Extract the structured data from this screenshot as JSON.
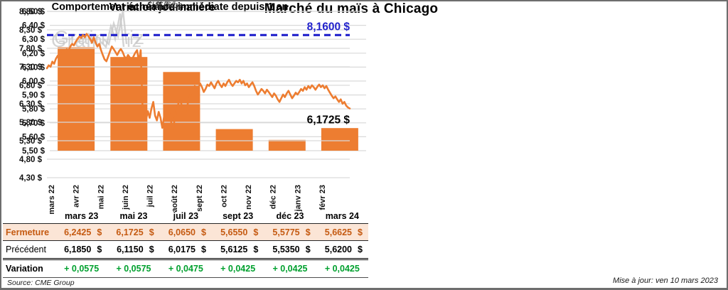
{
  "page": {
    "title": "Marché du maïs à Chicago",
    "source": "Source: CME Group",
    "updated": "Mise à jour: ven 10 mars 2023",
    "watermark": {
      "part1": "Grain",
      "part2": "iz",
      "middle_icon": "zigzag-w-icon"
    }
  },
  "colors": {
    "accent_orange": "#ED7D31",
    "gridline": "#D9D9D9",
    "dashed_blue": "#2222CC",
    "fermeture_bg": "#FBE5D6",
    "fermeture_text": "#C55A11",
    "variation_green": "#00A02E",
    "watermark_grey": "#c6c6c6"
  },
  "chart_data": [
    {
      "type": "bar",
      "title": "Variation journalière",
      "subtitle": "- $US/bo. -",
      "categories": [
        "mars 23",
        "mai 23",
        "juil 23",
        "sept 23",
        "déc 23",
        "mars 24"
      ],
      "values": [
        6.2425,
        6.1725,
        6.065,
        5.655,
        5.5775,
        5.6625
      ],
      "ylim": [
        5.5,
        6.5
      ],
      "ytick_step": 0.1,
      "ytick_labels": [
        "6,50 $",
        "6,40 $",
        "6,30 $",
        "6,20 $",
        "6,10 $",
        "6,00 $",
        "5,90 $",
        "5,80 $",
        "5,70 $",
        "5,60 $",
        "5,50 $"
      ],
      "grid": true,
      "legend": "none",
      "bar_color": "#ED7D31"
    },
    {
      "type": "line",
      "title": "Comportement échéance immédiate depuis 1 an",
      "subtitle": "- $US/bo. -",
      "x_labels": [
        "mars 22",
        "avr 22",
        "mai 22",
        "juin 22",
        "juil 22",
        "août 22",
        "sept 22",
        "oct 22",
        "nov 22",
        "déc 22",
        "janv 23",
        "févr 23"
      ],
      "ylim": [
        4.3,
        8.8
      ],
      "ytick_step": 0.5,
      "ytick_labels": [
        "8,80 $",
        "8,30 $",
        "7,80 $",
        "7,30 $",
        "6,80 $",
        "6,30 $",
        "5,80 $",
        "5,30 $",
        "4,80 $",
        "4,30 $"
      ],
      "grid": true,
      "legend": "none",
      "line_color": "#ED7D31",
      "reference_line": {
        "value": 8.16,
        "label": "8,1600 $",
        "style": "dashed",
        "color": "#2222CC"
      },
      "last_point": {
        "value": 6.1725,
        "label": "6,1725 $"
      },
      "values": [
        7.26,
        7.34,
        7.3,
        7.44,
        7.38,
        7.52,
        7.6,
        7.55,
        7.65,
        7.72,
        7.68,
        7.78,
        7.74,
        7.85,
        7.92,
        7.88,
        7.98,
        8.05,
        8.12,
        8.08,
        8.16,
        8.1,
        8.19,
        8.13,
        8.05,
        7.95,
        8.1,
        7.95,
        7.85,
        7.92,
        7.75,
        7.62,
        7.5,
        7.45,
        7.58,
        7.72,
        7.85,
        7.78,
        7.7,
        7.62,
        7.72,
        7.78,
        7.7,
        7.58,
        7.52,
        7.62,
        7.55,
        7.48,
        7.58,
        7.68,
        7.75,
        7.45,
        7.75,
        6.25,
        5.98,
        5.88,
        6.1,
        5.92,
        6.18,
        6.35,
        5.98,
        5.85,
        6.08,
        5.92,
        5.65,
        5.95,
        6.12,
        5.88,
        6.05,
        5.78,
        5.62,
        5.92,
        6.15,
        6.32,
        6.4,
        6.22,
        6.05,
        6.12,
        6.28,
        6.45,
        6.58,
        6.7,
        6.78,
        6.65,
        6.72,
        6.85,
        6.75,
        6.62,
        6.7,
        6.82,
        6.78,
        6.88,
        6.8,
        6.72,
        6.85,
        6.92,
        6.82,
        6.75,
        6.85,
        6.78,
        6.88,
        6.95,
        6.85,
        6.78,
        6.85,
        6.92,
        6.88,
        6.95,
        6.85,
        6.92,
        6.8,
        6.85,
        6.75,
        6.82,
        6.88,
        6.78,
        6.65,
        6.55,
        6.62,
        6.7,
        6.65,
        6.58,
        6.68,
        6.62,
        6.55,
        6.48,
        6.58,
        6.52,
        6.42,
        6.35,
        6.45,
        6.55,
        6.48,
        6.58,
        6.65,
        6.55,
        6.45,
        6.52,
        6.6,
        6.55,
        6.62,
        6.7,
        6.65,
        6.75,
        6.68,
        6.78,
        6.72,
        6.8,
        6.75,
        6.68,
        6.76,
        6.82,
        6.75,
        6.8,
        6.72,
        6.78,
        6.68,
        6.6,
        6.52,
        6.45,
        6.5,
        6.42,
        6.35,
        6.42,
        6.3,
        6.35,
        6.25,
        6.2,
        6.1725
      ]
    }
  ],
  "table": {
    "col_headers": [
      "",
      "mars 23",
      "mai 23",
      "juil 23",
      "sept 23",
      "déc 23",
      "mars 24"
    ],
    "rows": [
      {
        "label": "Fermeture",
        "style": "fermeture",
        "values": [
          "6,2425 $",
          "6,1725 $",
          "6,0650 $",
          "5,6550 $",
          "5,5775 $",
          "5,6625 $"
        ]
      },
      {
        "label": "Précédent",
        "style": "precedent",
        "values": [
          "6,1850 $",
          "6,1150 $",
          "6,0175 $",
          "5,6125 $",
          "5,5350 $",
          "5,6200 $"
        ]
      },
      {
        "label": "Variation",
        "style": "variation",
        "values": [
          "+ 0,0575",
          "+ 0,0575",
          "+ 0,0475",
          "+ 0,0425",
          "+ 0,0425",
          "+ 0,0425"
        ]
      }
    ]
  }
}
